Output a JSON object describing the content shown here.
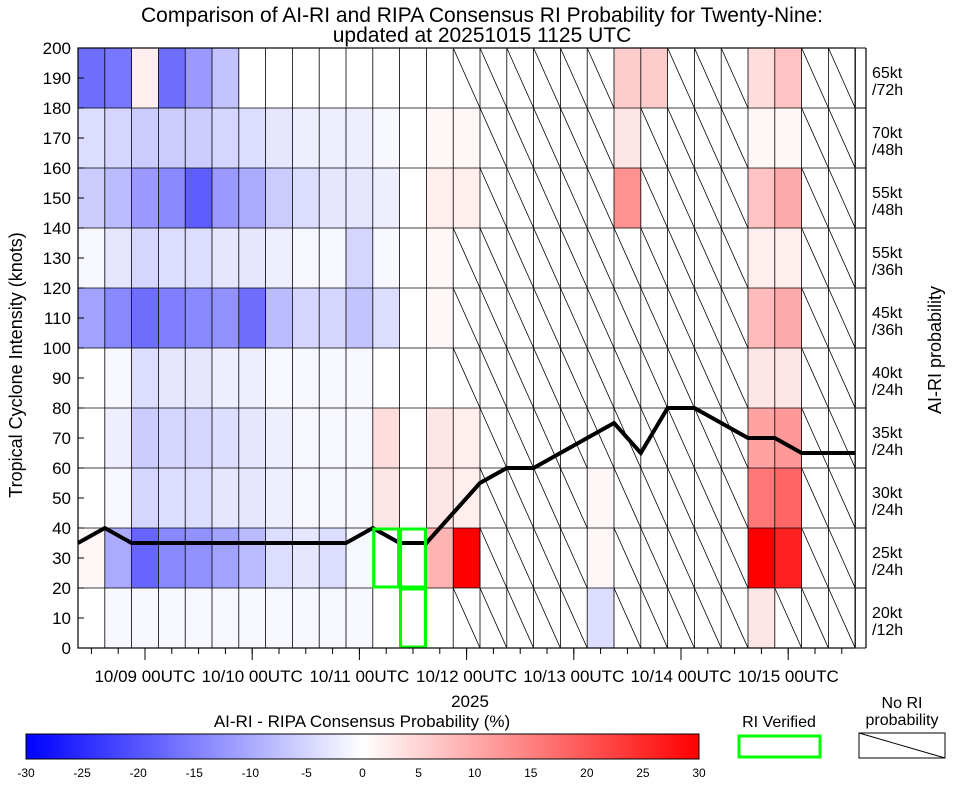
{
  "chart_data": {
    "type": "heatmap",
    "title_line1": "Comparison of AI-RI and RIPA Consensus RI Probability for Twenty-Nine:",
    "title_line2": "updated at 20251015 1125 UTC",
    "ylabel": "Tropical Cyclone Intensity (knots)",
    "right_axis_label": "AI-RI probability",
    "xlabel_year": "2025",
    "ylim": [
      0,
      200
    ],
    "y_ticks": [
      "0",
      "10",
      "20",
      "30",
      "40",
      "50",
      "60",
      "70",
      "80",
      "90",
      "100",
      "110",
      "120",
      "130",
      "140",
      "150",
      "160",
      "170",
      "180",
      "190",
      "200"
    ],
    "x_tick_labels": [
      "10/09 00UTC",
      "10/10 00UTC",
      "10/11 00UTC",
      "10/12 00UTC",
      "10/13 00UTC",
      "10/14 00UTC",
      "10/15 00UTC"
    ],
    "x_tick_columns": [
      2.5,
      6.5,
      10.5,
      14.5,
      18.5,
      22.5,
      26.5
    ],
    "n_columns": 29,
    "bands": [
      {
        "label": "20kt /12h",
        "lo": 0,
        "hi": 20
      },
      {
        "label": "25kt /24h",
        "lo": 20,
        "hi": 40
      },
      {
        "label": "30kt /24h",
        "lo": 40,
        "hi": 60
      },
      {
        "label": "35kt /24h",
        "lo": 60,
        "hi": 80
      },
      {
        "label": "40kt /24h",
        "lo": 80,
        "hi": 100
      },
      {
        "label": "45kt /36h",
        "lo": 100,
        "hi": 120
      },
      {
        "label": "55kt /36h",
        "lo": 120,
        "hi": 140
      },
      {
        "label": "55kt /48h",
        "lo": 140,
        "hi": 160
      },
      {
        "label": "70kt /48h",
        "lo": 160,
        "hi": 180
      },
      {
        "label": "65kt /72h",
        "lo": 180,
        "hi": 200
      }
    ],
    "band_label_parts": [
      [
        "20kt",
        "/12h"
      ],
      [
        "25kt",
        "/24h"
      ],
      [
        "30kt",
        "/24h"
      ],
      [
        "35kt",
        "/24h"
      ],
      [
        "40kt",
        "/24h"
      ],
      [
        "45kt",
        "/36h"
      ],
      [
        "55kt",
        "/36h"
      ],
      [
        "55kt",
        "/48h"
      ],
      [
        "70kt",
        "/48h"
      ],
      [
        "65kt",
        "/72h"
      ]
    ],
    "cell_values": [
      [
        null,
        -1,
        -1,
        -1,
        -1,
        -1,
        -1,
        -1,
        -1,
        -1,
        -1,
        null,
        null,
        0,
        null,
        null,
        null,
        null,
        null,
        -4,
        null,
        null,
        null,
        null,
        null,
        3,
        null,
        null,
        null
      ],
      [
        1,
        -10,
        -18,
        -14,
        -13,
        -11,
        -8,
        -4,
        -3,
        -4,
        -1,
        null,
        null,
        9,
        30,
        null,
        null,
        null,
        null,
        1,
        null,
        null,
        null,
        null,
        null,
        30,
        26,
        null,
        null
      ],
      [
        null,
        -1,
        -5,
        -4,
        -4,
        -3,
        -3,
        -2,
        -1,
        -1,
        -1,
        3,
        null,
        3,
        2,
        null,
        null,
        null,
        null,
        1,
        null,
        null,
        null,
        null,
        null,
        16,
        18,
        null,
        null
      ],
      [
        null,
        -2,
        -6,
        -5,
        -5,
        -4,
        -3,
        -2,
        -1,
        -1,
        -1,
        4,
        null,
        3,
        2,
        null,
        null,
        null,
        null,
        null,
        null,
        null,
        null,
        null,
        null,
        11,
        12,
        null,
        null
      ],
      [
        null,
        -1,
        -4,
        -3,
        -3,
        -2,
        -2,
        -1,
        -1,
        -1,
        -1,
        null,
        null,
        null,
        null,
        null,
        null,
        null,
        null,
        null,
        null,
        null,
        null,
        null,
        null,
        3,
        3,
        null,
        null
      ],
      [
        -11,
        -14,
        -17,
        -15,
        -14,
        -13,
        -17,
        -8,
        -5,
        -5,
        -7,
        -4,
        null,
        1,
        null,
        null,
        null,
        null,
        null,
        null,
        null,
        null,
        null,
        null,
        null,
        8,
        10,
        null,
        null
      ],
      [
        -1,
        -3,
        -5,
        -4,
        -4,
        -3,
        -3,
        -2,
        -1,
        -1,
        -5,
        -1,
        null,
        1,
        null,
        null,
        null,
        null,
        null,
        null,
        null,
        null,
        null,
        null,
        null,
        2,
        2,
        null,
        null
      ],
      [
        -6,
        -8,
        -12,
        -14,
        -19,
        -12,
        -10,
        -6,
        -4,
        -3,
        -3,
        -2,
        null,
        2,
        2,
        null,
        null,
        null,
        null,
        null,
        13,
        null,
        null,
        null,
        null,
        7,
        10,
        null,
        null
      ],
      [
        -4,
        -5,
        -6,
        -6,
        -6,
        -5,
        -4,
        -3,
        -2,
        -2,
        -2,
        -1,
        null,
        1,
        1,
        null,
        null,
        null,
        null,
        null,
        3,
        null,
        null,
        null,
        null,
        1,
        1,
        null,
        null
      ],
      [
        -17,
        -16,
        2,
        -17,
        -12,
        -7,
        null,
        null,
        null,
        null,
        null,
        null,
        null,
        null,
        null,
        null,
        null,
        null,
        null,
        null,
        6,
        6,
        null,
        null,
        null,
        4,
        7,
        null,
        null
      ]
    ],
    "ai_ri_probability_line": {
      "x_columns": [
        0,
        1,
        2,
        3,
        4,
        5,
        6,
        7,
        8,
        9,
        10,
        11,
        12,
        13,
        14,
        15,
        16,
        17,
        18,
        19,
        20,
        21,
        22,
        23,
        24,
        25,
        26,
        27,
        28,
        29
      ],
      "y_values": [
        35,
        40,
        35,
        35,
        35,
        35,
        35,
        35,
        35,
        35,
        35,
        40,
        35,
        35,
        45,
        55,
        60,
        60,
        65,
        70,
        75,
        65,
        80,
        80,
        75,
        70,
        70,
        65,
        65,
        65
      ]
    },
    "ri_verified_boxes": [
      {
        "col": 11,
        "lo": 20,
        "hi": 40
      },
      {
        "col": 12,
        "lo": 0,
        "hi": 20
      },
      {
        "col": 12,
        "lo": 20,
        "hi": 40
      }
    ],
    "colorbar": {
      "title": "AI-RI - RIPA Consensus Probability (%)",
      "ticks": [
        "-30",
        "-25",
        "-20",
        "-15",
        "-10",
        "-5",
        "0",
        "5",
        "10",
        "15",
        "20",
        "25",
        "30"
      ],
      "range": [
        -30,
        30
      ]
    },
    "legend": {
      "verified_label": "RI Verified",
      "no_ri_label_line1": "No RI",
      "no_ri_label_line2": "probability"
    }
  }
}
